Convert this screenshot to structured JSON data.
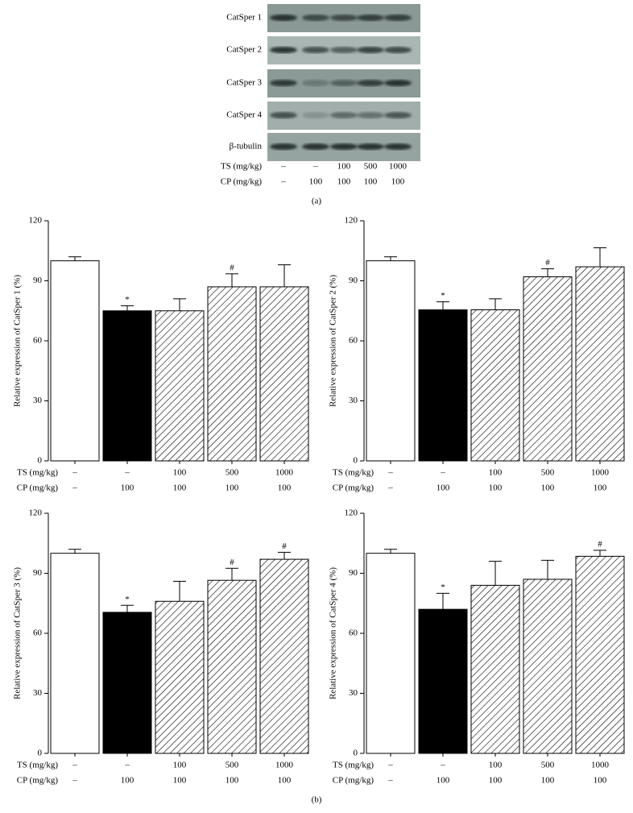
{
  "blot": {
    "rows": [
      "CatSper 1",
      "CatSper 2",
      "CatSper 3",
      "CatSper 4",
      "β-tubulin"
    ],
    "ts_label": "TS (mg/kg)",
    "ts": [
      "–",
      "–",
      "100",
      "500",
      "1000"
    ],
    "cp_label": "CP (mg/kg)",
    "cp": [
      "–",
      "100",
      "100",
      "100",
      "100"
    ],
    "caption": "(a)"
  },
  "figure_b_caption": "(b)",
  "chart_data": [
    {
      "type": "bar",
      "ylabel": "Relative expression of CatSper 1 (%)",
      "row_titles": [
        "TS (mg/kg)",
        "CP (mg/kg)"
      ],
      "ts": [
        "–",
        "–",
        "100",
        "500",
        "1000"
      ],
      "cp": [
        "–",
        "100",
        "100",
        "100",
        "100"
      ],
      "values": [
        100,
        75,
        75,
        87,
        87
      ],
      "errors": [
        2,
        2.5,
        6,
        6.5,
        11
      ],
      "markers": [
        null,
        "*",
        null,
        "#",
        null
      ],
      "fills": [
        "white",
        "black",
        "hatch",
        "hatch",
        "hatch"
      ],
      "ylim": [
        0,
        120
      ],
      "yticks": [
        0,
        30,
        60,
        90,
        120
      ]
    },
    {
      "type": "bar",
      "ylabel": "Relative expression of CatSper 2 (%)",
      "row_titles": [
        "TS (mg/kg)",
        "CP (mg/kg)"
      ],
      "ts": [
        "–",
        "–",
        "100",
        "500",
        "1000"
      ],
      "cp": [
        "–",
        "100",
        "100",
        "100",
        "100"
      ],
      "values": [
        100,
        75.5,
        75.5,
        92,
        97
      ],
      "errors": [
        2,
        4,
        5.5,
        4,
        9.5
      ],
      "markers": [
        null,
        "*",
        null,
        "#",
        null
      ],
      "fills": [
        "white",
        "black",
        "hatch",
        "hatch",
        "hatch"
      ],
      "ylim": [
        0,
        120
      ],
      "yticks": [
        0,
        30,
        60,
        90,
        120
      ]
    },
    {
      "type": "bar",
      "ylabel": "Relative expression of CatSper 3 (%)",
      "row_titles": [
        "TS (mg/kg)",
        "CP (mg/kg)"
      ],
      "ts": [
        "–",
        "–",
        "100",
        "500",
        "1000"
      ],
      "cp": [
        "–",
        "100",
        "100",
        "100",
        "100"
      ],
      "values": [
        100,
        70.5,
        76,
        86.5,
        97
      ],
      "errors": [
        2,
        3.5,
        10,
        6,
        3.5
      ],
      "markers": [
        null,
        "*",
        null,
        "#",
        "#"
      ],
      "fills": [
        "white",
        "black",
        "hatch",
        "hatch",
        "hatch"
      ],
      "ylim": [
        0,
        120
      ],
      "yticks": [
        0,
        30,
        60,
        90,
        120
      ]
    },
    {
      "type": "bar",
      "ylabel": "Relative expression of CatSper 4 (%)",
      "row_titles": [
        "TS (mg/kg)",
        "CP (mg/kg)"
      ],
      "ts": [
        "–",
        "–",
        "100",
        "500",
        "1000"
      ],
      "cp": [
        "–",
        "100",
        "100",
        "100",
        "100"
      ],
      "values": [
        100,
        72,
        84,
        87,
        98.5
      ],
      "errors": [
        2,
        8,
        12,
        9.5,
        3
      ],
      "markers": [
        null,
        "*",
        null,
        null,
        "#"
      ],
      "fills": [
        "white",
        "black",
        "hatch",
        "hatch",
        "hatch"
      ],
      "ylim": [
        0,
        120
      ],
      "yticks": [
        0,
        30,
        60,
        90,
        120
      ]
    }
  ]
}
